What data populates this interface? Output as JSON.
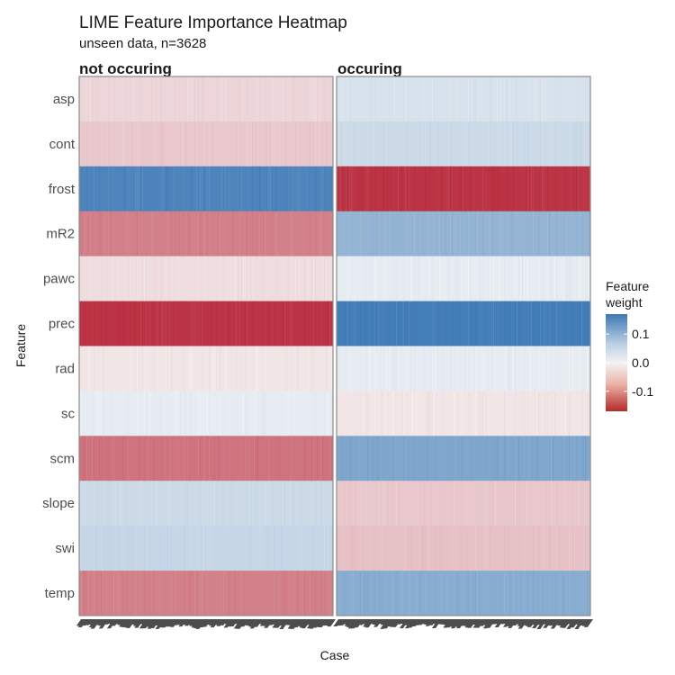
{
  "chart_data": {
    "type": "heatmap",
    "title": "LIME Feature Importance Heatmap",
    "subtitle": "unseen data, n=3628",
    "xlabel": "Case",
    "ylabel": "Feature",
    "facets": [
      "not occuring",
      "occuring"
    ],
    "features": [
      "asp",
      "cont",
      "frost",
      "mR2",
      "pawc",
      "prec",
      "rad",
      "sc",
      "scm",
      "slope",
      "swi",
      "temp"
    ],
    "mean_weights": {
      "not occuring": [
        -0.02,
        -0.03,
        0.15,
        -0.09,
        -0.015,
        -0.16,
        -0.01,
        0.01,
        -0.1,
        0.03,
        0.035,
        -0.09
      ],
      "occuring": [
        0.02,
        0.03,
        -0.16,
        0.08,
        0.01,
        0.16,
        0.01,
        -0.01,
        0.1,
        -0.03,
        -0.035,
        0.09
      ]
    },
    "legend": {
      "title": "Feature\nweight",
      "ticks": [
        0.1,
        0.0,
        -0.1
      ],
      "tick_labels": [
        "0.1",
        "0.0",
        "-0.1"
      ],
      "range": [
        -0.17,
        0.17
      ],
      "colors": {
        "low": "#b2182b",
        "mid": "#f7f7f7",
        "high": "#2166ac"
      },
      "position": "right"
    },
    "panel_border": "#8c8c8c",
    "grid": false
  }
}
